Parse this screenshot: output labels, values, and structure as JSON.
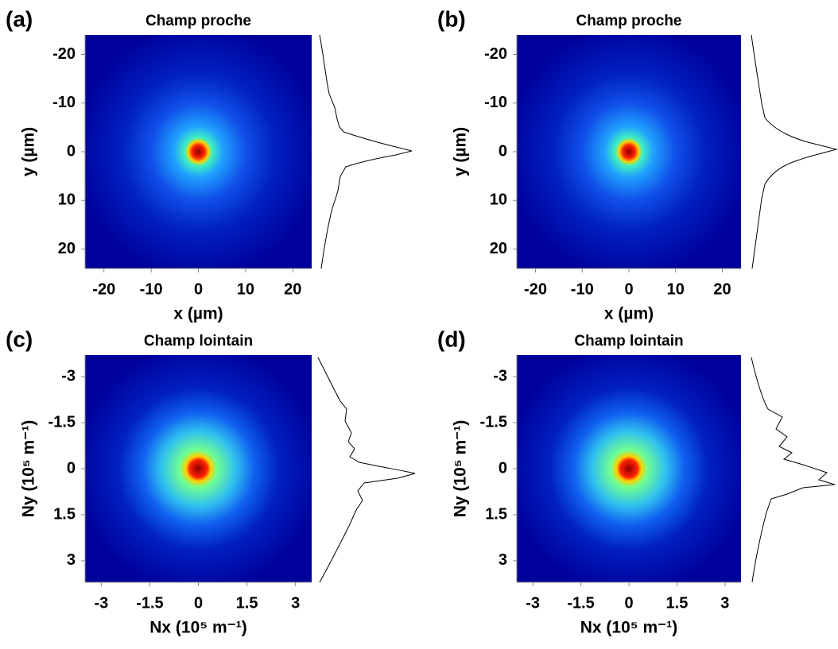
{
  "chart_data": [
    {
      "type": "heatmap",
      "panel": "(a)",
      "title": "Champ proche",
      "xlabel": "x (µm)",
      "ylabel": "y (µm)",
      "xlim": [
        -24,
        24
      ],
      "ylim": [
        -24,
        24
      ],
      "y_reversed": true,
      "xticks": [
        -20,
        -10,
        0,
        10,
        20
      ],
      "yticks": [
        -20,
        -10,
        0,
        10,
        20
      ]
    },
    {
      "type": "heatmap",
      "panel": "(b)",
      "title": "Champ proche",
      "xlabel": "x (µm)",
      "ylabel": "y (µm)",
      "xlim": [
        -24,
        24
      ],
      "ylim": [
        -24,
        24
      ],
      "y_reversed": true,
      "xticks": [
        -20,
        -10,
        0,
        10,
        20
      ],
      "yticks": [
        -20,
        -10,
        0,
        10,
        20
      ]
    },
    {
      "type": "heatmap",
      "panel": "(c)",
      "title": "Champ lointain",
      "xlabel": "Nx (10⁵ m⁻¹)",
      "ylabel": "Ny (10⁵ m⁻¹)",
      "xlim": [
        -3.5,
        3.5
      ],
      "ylim": [
        -3.7,
        3.7
      ],
      "y_reversed": true,
      "xticks": [
        -3,
        -1.5,
        0,
        1.5,
        3
      ],
      "yticks": [
        -3,
        -1.5,
        0,
        1.5,
        3
      ]
    },
    {
      "type": "heatmap",
      "panel": "(d)",
      "title": "Champ lointain",
      "xlabel": "Nx (10⁵ m⁻¹)",
      "ylabel": "Ny (10⁵ m⁻¹)",
      "xlim": [
        -3.5,
        3.5
      ],
      "ylim": [
        -3.7,
        3.7
      ],
      "y_reversed": true,
      "xticks": [
        -3,
        -1.5,
        0,
        1.5,
        3
      ],
      "yticks": [
        -3,
        -1.5,
        0,
        1.5,
        3
      ]
    }
  ]
}
